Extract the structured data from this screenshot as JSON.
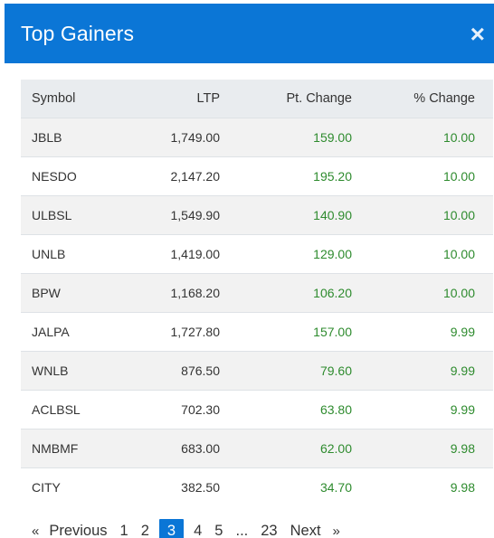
{
  "modal": {
    "title": "Top Gainers",
    "close_symbol": "×"
  },
  "table": {
    "headers": {
      "symbol": "Symbol",
      "ltp": "LTP",
      "pt_change": "Pt. Change",
      "pct_change": "% Change"
    },
    "rows": [
      {
        "symbol": "JBLB",
        "ltp": "1,749.00",
        "pt_change": "159.00",
        "pct_change": "10.00"
      },
      {
        "symbol": "NESDO",
        "ltp": "2,147.20",
        "pt_change": "195.20",
        "pct_change": "10.00"
      },
      {
        "symbol": "ULBSL",
        "ltp": "1,549.90",
        "pt_change": "140.90",
        "pct_change": "10.00"
      },
      {
        "symbol": "UNLB",
        "ltp": "1,419.00",
        "pt_change": "129.00",
        "pct_change": "10.00"
      },
      {
        "symbol": "BPW",
        "ltp": "1,168.20",
        "pt_change": "106.20",
        "pct_change": "10.00"
      },
      {
        "symbol": "JALPA",
        "ltp": "1,727.80",
        "pt_change": "157.00",
        "pct_change": "9.99"
      },
      {
        "symbol": "WNLB",
        "ltp": "876.50",
        "pt_change": "79.60",
        "pct_change": "9.99"
      },
      {
        "symbol": "ACLBSL",
        "ltp": "702.30",
        "pt_change": "63.80",
        "pct_change": "9.99"
      },
      {
        "symbol": "NMBMF",
        "ltp": "683.00",
        "pt_change": "62.00",
        "pct_change": "9.98"
      },
      {
        "symbol": "CITY",
        "ltp": "382.50",
        "pt_change": "34.70",
        "pct_change": "9.98"
      }
    ]
  },
  "pagination": {
    "prev_arrow": "«",
    "previous": "Previous",
    "pages": [
      "1",
      "2",
      "3",
      "4",
      "5",
      "...",
      "23"
    ],
    "active_page": "3",
    "next": "Next",
    "next_arrow": "»"
  },
  "colors": {
    "header_bg": "#0b76d6",
    "positive": "#2e8b2e",
    "active_page_bg": "#0b76d6"
  }
}
